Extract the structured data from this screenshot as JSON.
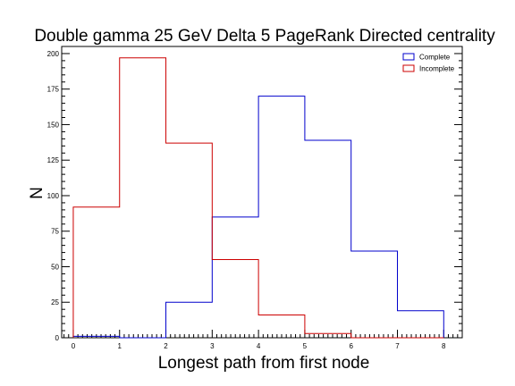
{
  "chart_data": {
    "type": "histogram",
    "title": "Double gamma 25 GeV Delta 5 PageRank Directed centrality",
    "xlabel": "Longest path from first node",
    "ylabel": "N",
    "xlim": [
      -0.25,
      8.4
    ],
    "ylim": [
      0,
      205
    ],
    "x_ticks": [
      0,
      1,
      2,
      3,
      4,
      5,
      6,
      7,
      8
    ],
    "y_ticks": [
      0,
      25,
      50,
      75,
      100,
      125,
      150,
      175,
      200
    ],
    "bin_edges": [
      0,
      1,
      2,
      3,
      4,
      5,
      6,
      7,
      8
    ],
    "series": [
      {
        "name": "Complete",
        "color": "#0000cc",
        "values": [
          1,
          0,
          25,
          85,
          170,
          139,
          61,
          19
        ]
      },
      {
        "name": "Incomplete",
        "color": "#cc0000",
        "values": [
          92,
          197,
          137,
          55,
          16,
          3,
          0,
          0
        ]
      }
    ],
    "legend_position": "top-right",
    "grid": false
  }
}
